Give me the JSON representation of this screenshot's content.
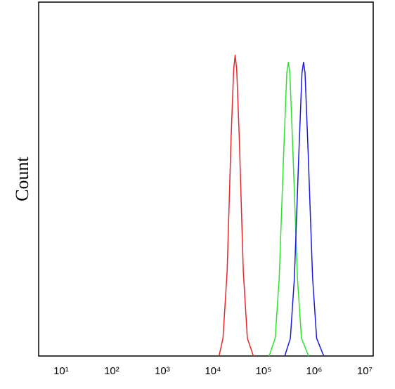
{
  "chart_data": {
    "type": "line",
    "ylabel": "Count",
    "xscale": "log",
    "grid": false,
    "xlim": [
      3.6,
      14700000
    ],
    "ylim": [
      0,
      100
    ],
    "xticks": [
      {
        "value": 10,
        "label": "10¹"
      },
      {
        "value": 100,
        "label": "10²"
      },
      {
        "value": 1000,
        "label": "10³"
      },
      {
        "value": 10000,
        "label": "10⁴"
      },
      {
        "value": 100000,
        "label": "10⁵"
      },
      {
        "value": 1000000,
        "label": "10⁶"
      },
      {
        "value": 10000000,
        "label": "10⁷"
      }
    ],
    "series": [
      {
        "color": "#e8262a",
        "x": [
          13200,
          15800,
          19100,
          22900,
          25700,
          27500,
          29500,
          33100,
          39800,
          47900,
          63100
        ],
        "values": [
          0,
          5,
          24,
          62,
          81,
          85,
          81,
          62,
          24,
          5,
          0
        ]
      },
      {
        "color": "#2fe02f",
        "x": [
          129000,
          170000,
          204000,
          251000,
          288000,
          309000,
          331000,
          380000,
          468000,
          562000,
          776000
        ],
        "values": [
          0,
          5,
          22,
          58,
          80,
          83,
          80,
          58,
          22,
          5,
          0
        ]
      },
      {
        "color": "#1a1ae0",
        "x": [
          263000,
          339000,
          407000,
          501000,
          575000,
          617000,
          661000,
          759000,
          933000,
          1120000,
          1550000
        ],
        "values": [
          0,
          5,
          22,
          58,
          80,
          83,
          80,
          58,
          22,
          5,
          0
        ]
      }
    ]
  }
}
